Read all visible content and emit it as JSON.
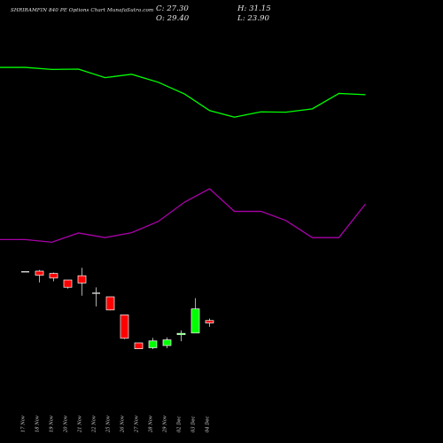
{
  "header": {
    "title": "SHRIRAMFIN 840 PE Options Chart MunafaSutra.com",
    "close": "C: 27.30",
    "open": "O: 29.40",
    "high": "H: 31.15",
    "low": "L: 23.90"
  },
  "colors": {
    "background": "#000000",
    "bullish": "#00ff00",
    "bearish": "#ff0000",
    "neutral": "#cccccc",
    "upper_band": "#00ff00",
    "lower_band": "#aa00aa",
    "wick": "#d8d8d8"
  },
  "chart_data": {
    "type": "candlestick",
    "categories": [
      "17 Nov",
      "18 Nov",
      "19 Nov",
      "20 Nov",
      "21 Nov",
      "22 Nov",
      "25 Nov",
      "26 Nov",
      "27 Nov",
      "28 Nov",
      "29 Nov",
      "02 Dec",
      "03 Dec",
      "04 Dec"
    ],
    "candles": [
      {
        "open": 72.3,
        "high": 72.3,
        "low": 72.3,
        "close": 72.3
      },
      {
        "open": 72.3,
        "high": 73.3,
        "low": 62.5,
        "close": 68.7
      },
      {
        "open": 70.3,
        "high": 71.1,
        "low": 63.5,
        "close": 66.3
      },
      {
        "open": 64.6,
        "high": 64.6,
        "low": 57.1,
        "close": 58.3
      },
      {
        "open": 68.3,
        "high": 75.2,
        "low": 51.0,
        "close": 62.0
      },
      {
        "open": 53.7,
        "high": 58.2,
        "low": 41.6,
        "close": 53.7
      },
      {
        "open": 50.0,
        "high": 50.0,
        "low": 38.3,
        "close": 38.6
      },
      {
        "open": 34.3,
        "high": 34.3,
        "low": 13.3,
        "close": 14.0
      },
      {
        "open": 10.0,
        "high": 10.0,
        "low": 4.6,
        "close": 4.9
      },
      {
        "open": 5.8,
        "high": 14.3,
        "low": 4.6,
        "close": 11.7
      },
      {
        "open": 7.7,
        "high": 14.7,
        "low": 5.4,
        "close": 12.6
      },
      {
        "open": 17.2,
        "high": 20.9,
        "low": 11.4,
        "close": 18.3
      },
      {
        "open": 18.6,
        "high": 48.8,
        "low": 18.6,
        "close": 39.5
      },
      {
        "open": 29.4,
        "high": 31.15,
        "low": 23.9,
        "close": 27.3
      }
    ],
    "upper_band": [
      249.2,
      249.2,
      247.4,
      247.7,
      240.3,
      243.2,
      236.3,
      226.0,
      211.7,
      206.0,
      210.6,
      210.3,
      213.2,
      226.6,
      225.5
    ],
    "lower_band": [
      99.7,
      99.7,
      97.4,
      105.4,
      101.4,
      105.7,
      115.4,
      132.3,
      143.8,
      124.2,
      124.2,
      116.3,
      101.4,
      101.4,
      130.6
    ],
    "band_x": [
      "17 Nov",
      "18 Nov",
      "19 Nov",
      "20 Nov",
      "21 Nov",
      "22 Nov",
      "25 Nov",
      "26 Nov",
      "27 Nov",
      "28 Nov",
      "29 Nov",
      "02 Dec",
      "03 Dec",
      "04 Dec",
      "04 Dec"
    ],
    "ylim": [
      0,
      265
    ]
  }
}
